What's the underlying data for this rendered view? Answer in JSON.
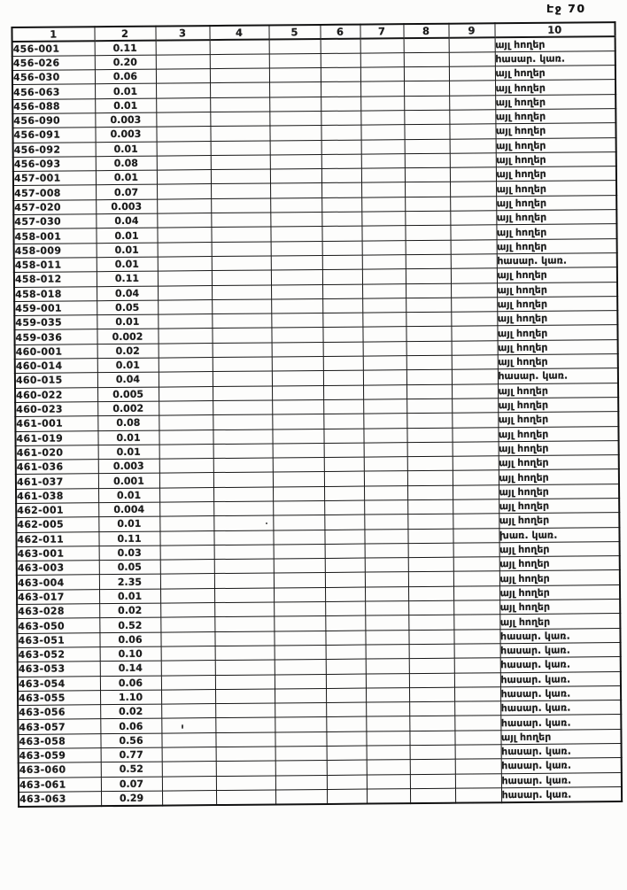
{
  "page": {
    "page_label": "Էջ 70"
  },
  "table": {
    "headers": [
      "1",
      "2",
      "3",
      "4",
      "5",
      "6",
      "7",
      "8",
      "9",
      "10"
    ],
    "empty_column_count": 7,
    "rows": [
      {
        "code": "456-001",
        "value": "0.11",
        "label": "այլ հողեր"
      },
      {
        "code": "456-026",
        "value": "0.20",
        "label": "հասար. կառ."
      },
      {
        "code": "456-030",
        "value": "0.06",
        "label": "այլ հողեր"
      },
      {
        "code": "456-063",
        "value": "0.01",
        "label": "այլ հողեր"
      },
      {
        "code": "456-088",
        "value": "0.01",
        "label": "այլ հողեր"
      },
      {
        "code": "456-090",
        "value": "0.003",
        "label": "այլ հողեր"
      },
      {
        "code": "456-091",
        "value": "0.003",
        "label": "այլ հողեր"
      },
      {
        "code": "456-092",
        "value": "0.01",
        "label": "այլ հողեր"
      },
      {
        "code": "456-093",
        "value": "0.08",
        "label": "այլ հողեր"
      },
      {
        "code": "457-001",
        "value": "0.01",
        "label": "այլ հողեր"
      },
      {
        "code": "457-008",
        "value": "0.07",
        "label": "այլ հողեր"
      },
      {
        "code": "457-020",
        "value": "0.003",
        "label": "այլ հողեր"
      },
      {
        "code": "457-030",
        "value": "0.04",
        "label": "այլ հողեր"
      },
      {
        "code": "458-001",
        "value": "0.01",
        "label": "այլ հողեր"
      },
      {
        "code": "458-009",
        "value": "0.01",
        "label": "այլ հողեր"
      },
      {
        "code": "458-011",
        "value": "0.01",
        "label": "հասար. կառ."
      },
      {
        "code": "458-012",
        "value": "0.11",
        "label": "այլ հողեր"
      },
      {
        "code": "458-018",
        "value": "0.04",
        "label": "այլ հողեր"
      },
      {
        "code": "459-001",
        "value": "0.05",
        "label": "այլ հողեր"
      },
      {
        "code": "459-035",
        "value": "0.01",
        "label": "այլ հողեր"
      },
      {
        "code": "459-036",
        "value": "0.002",
        "label": "այլ հողեր"
      },
      {
        "code": "460-001",
        "value": "0.02",
        "label": "այլ հողեր"
      },
      {
        "code": "460-014",
        "value": "0.01",
        "label": "այլ հողեր"
      },
      {
        "code": "460-015",
        "value": "0.04",
        "label": "հասար. կառ."
      },
      {
        "code": "460-022",
        "value": "0.005",
        "label": "այլ հողեր"
      },
      {
        "code": "460-023",
        "value": "0.002",
        "label": "այլ հողեր"
      },
      {
        "code": "461-001",
        "value": "0.08",
        "label": "այլ հողեր"
      },
      {
        "code": "461-019",
        "value": "0.01",
        "label": "այլ հողեր"
      },
      {
        "code": "461-020",
        "value": "0.01",
        "label": "այլ հողեր"
      },
      {
        "code": "461-036",
        "value": "0.003",
        "label": "այլ հողեր"
      },
      {
        "code": "461-037",
        "value": "0.001",
        "label": "այլ հողեր"
      },
      {
        "code": "461-038",
        "value": "0.01",
        "label": "այլ հողեր"
      },
      {
        "code": "462-001",
        "value": "0.004",
        "label": "այլ հողեր"
      },
      {
        "code": "462-005",
        "value": "0.01",
        "label": "այլ հողեր"
      },
      {
        "code": "462-011",
        "value": "0.11",
        "label": "խառ. կառ."
      },
      {
        "code": "463-001",
        "value": "0.03",
        "label": "այլ հողեր"
      },
      {
        "code": "463-003",
        "value": "0.05",
        "label": "այլ հողեր"
      },
      {
        "code": "463-004",
        "value": "2.35",
        "label": "այլ հողեր"
      },
      {
        "code": "463-017",
        "value": "0.01",
        "label": "այլ հողեր"
      },
      {
        "code": "463-028",
        "value": "0.02",
        "label": "այլ հողեր"
      },
      {
        "code": "463-050",
        "value": "0.52",
        "label": "այլ հողեր"
      },
      {
        "code": "463-051",
        "value": "0.06",
        "label": "հասար. կառ."
      },
      {
        "code": "463-052",
        "value": "0.10",
        "label": "հասար. կառ."
      },
      {
        "code": "463-053",
        "value": "0.14",
        "label": "հասար. կառ."
      },
      {
        "code": "463-054",
        "value": "0.06",
        "label": "հասար. կառ."
      },
      {
        "code": "463-055",
        "value": "1.10",
        "label": "հասար. կառ."
      },
      {
        "code": "463-056",
        "value": "0.02",
        "label": "հասար. կառ."
      },
      {
        "code": "463-057",
        "value": "0.06",
        "label": "հասար. կառ."
      },
      {
        "code": "463-058",
        "value": "0.56",
        "label": "այլ հողեր"
      },
      {
        "code": "463-059",
        "value": "0.77",
        "label": "հասար. կառ."
      },
      {
        "code": "463-060",
        "value": "0.52",
        "label": "հասար. կառ."
      },
      {
        "code": "463-061",
        "value": "0.07",
        "label": "հասար. կառ."
      },
      {
        "code": "463-063",
        "value": "0.29",
        "label": "հասար. կառ."
      }
    ]
  },
  "colors": {
    "ink": "#1b1b1b",
    "border": "#161616",
    "paper": "#fcfcfb"
  }
}
